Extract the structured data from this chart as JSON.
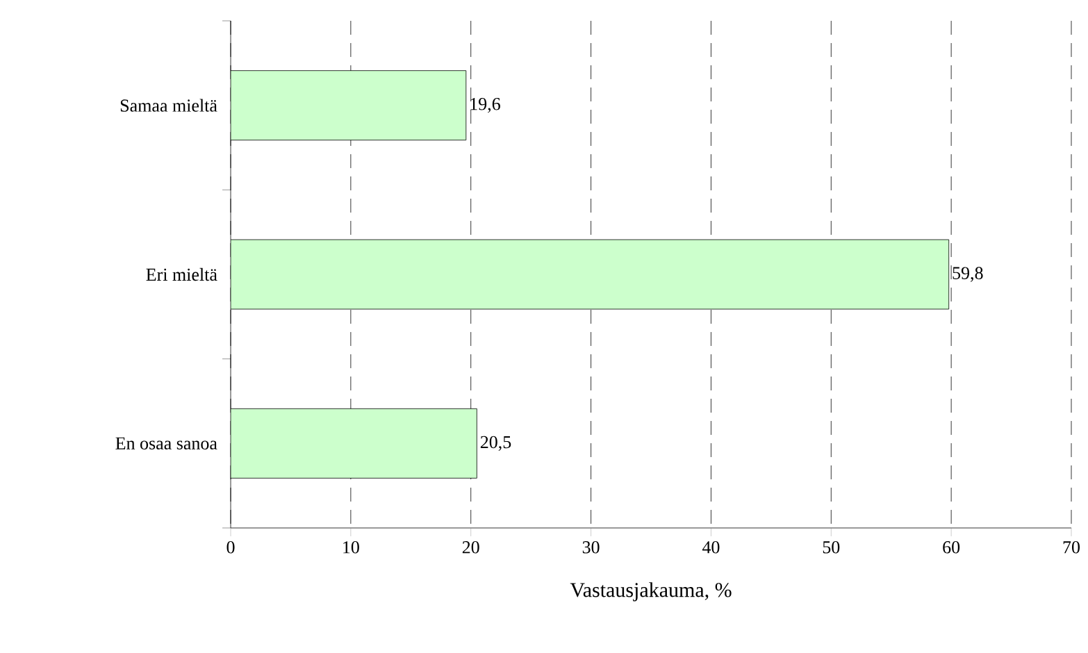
{
  "chart_data": {
    "type": "bar",
    "orientation": "horizontal",
    "xlabel": "Vastausjakauma, %",
    "categories": [
      "Samaa mieltä",
      "Eri mieltä",
      "En osaa sanoa"
    ],
    "values": [
      19.6,
      59.8,
      20.5
    ],
    "value_labels": [
      "19,6",
      "59,8",
      "20,5"
    ],
    "color": "#ccffcc",
    "xlim": [
      0,
      70
    ],
    "xticks": [
      0,
      10,
      20,
      30,
      40,
      50,
      60,
      70
    ],
    "grid": "x"
  }
}
